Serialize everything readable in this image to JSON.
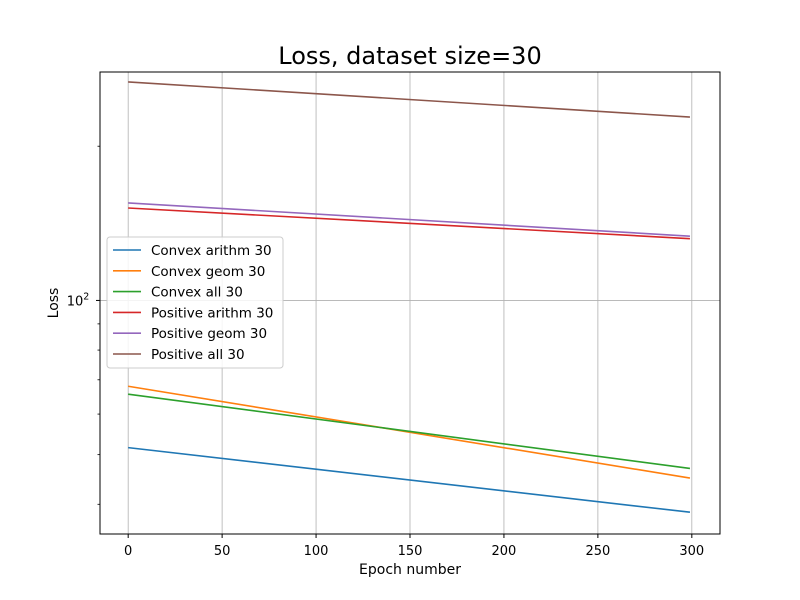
{
  "chart_data": {
    "type": "line",
    "title": "Loss, dataset size=30",
    "xlabel": "Epoch number",
    "ylabel": "Loss",
    "yscale": "log",
    "xlim": [
      -15,
      315
    ],
    "ylim": [
      35.0,
      279.2
    ],
    "grid": true,
    "legend_position": "center-left",
    "x_ticks": [
      {
        "value": 0,
        "label": "0"
      },
      {
        "value": 50,
        "label": "50"
      },
      {
        "value": 100,
        "label": "100"
      },
      {
        "value": 150,
        "label": "150"
      },
      {
        "value": 200,
        "label": "200"
      },
      {
        "value": 250,
        "label": "250"
      },
      {
        "value": 300,
        "label": "300"
      }
    ],
    "y_major_ticks": [
      {
        "value": 100,
        "label": "10^2",
        "base": "10",
        "exponent": "2"
      }
    ],
    "y_minor_ticks": [
      40,
      50,
      60,
      70,
      80,
      90,
      200
    ],
    "x": [
      0,
      299
    ],
    "series": [
      {
        "name": "Convex arithm 30",
        "color": "#1f77b4",
        "values": [
          51.6,
          38.6
        ]
      },
      {
        "name": "Convex geom 30",
        "color": "#ff7f0e",
        "values": [
          68.0,
          45.0
        ]
      },
      {
        "name": "Convex all 30",
        "color": "#2ca02c",
        "values": [
          65.6,
          47.0
        ]
      },
      {
        "name": "Positive arithm 30",
        "color": "#d62728",
        "values": [
          151.5,
          132.0
        ]
      },
      {
        "name": "Positive geom 30",
        "color": "#9467bd",
        "values": [
          155.0,
          133.5
        ]
      },
      {
        "name": "Positive all 30",
        "color": "#8c564b",
        "values": [
          267.0,
          228.0
        ]
      }
    ]
  }
}
